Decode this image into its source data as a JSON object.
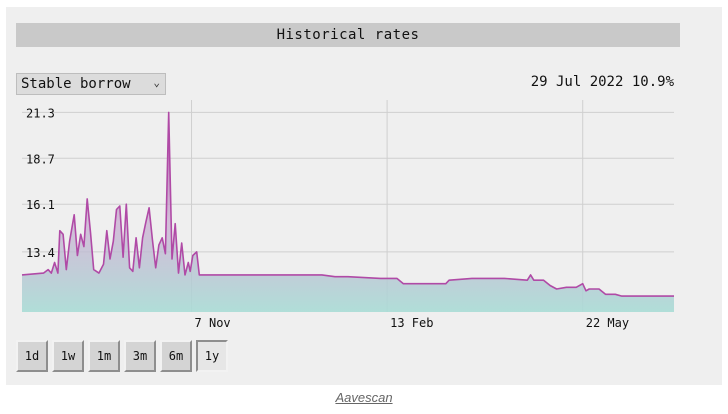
{
  "title": "Historical rates",
  "rate_type": {
    "selected": "Stable borrow"
  },
  "readout": "29 Jul 2022 10.9%",
  "time_ranges": [
    {
      "label": "1d"
    },
    {
      "label": "1w"
    },
    {
      "label": "1m"
    },
    {
      "label": "3m"
    },
    {
      "label": "6m"
    },
    {
      "label": "1y",
      "active": true
    }
  ],
  "caption": "Aavescan",
  "chart_data": {
    "type": "area",
    "y_ticks": [
      "21.3",
      "18.7",
      "16.1",
      "13.4"
    ],
    "y_tick_values": [
      21.3,
      18.7,
      16.1,
      13.4
    ],
    "x_ticks": [
      "7 Nov",
      "13 Feb",
      "22 May"
    ],
    "x_tick_positions": [
      0.26,
      0.56,
      0.86
    ],
    "ylim": [
      10.0,
      22.0
    ],
    "line_color": "#b04aa6",
    "fill_top_color": "#b24aa4",
    "fill_bottom_color": "#a9dcd6",
    "series": [
      {
        "points": [
          [
            0.0,
            12.1
          ],
          [
            0.033,
            12.2
          ],
          [
            0.04,
            12.4
          ],
          [
            0.045,
            12.2
          ],
          [
            0.05,
            12.8
          ],
          [
            0.055,
            12.2
          ],
          [
            0.058,
            14.6
          ],
          [
            0.063,
            14.4
          ],
          [
            0.068,
            12.4
          ],
          [
            0.073,
            14.0
          ],
          [
            0.08,
            15.5
          ],
          [
            0.085,
            13.2
          ],
          [
            0.09,
            14.4
          ],
          [
            0.095,
            13.7
          ],
          [
            0.1,
            16.4
          ],
          [
            0.105,
            14.5
          ],
          [
            0.11,
            12.4
          ],
          [
            0.118,
            12.2
          ],
          [
            0.125,
            12.7
          ],
          [
            0.13,
            14.6
          ],
          [
            0.135,
            13.0
          ],
          [
            0.14,
            14.0
          ],
          [
            0.145,
            15.8
          ],
          [
            0.15,
            16.0
          ],
          [
            0.155,
            13.1
          ],
          [
            0.16,
            16.1
          ],
          [
            0.165,
            12.5
          ],
          [
            0.17,
            12.3
          ],
          [
            0.175,
            14.2
          ],
          [
            0.18,
            12.5
          ],
          [
            0.185,
            14.2
          ],
          [
            0.19,
            15.1
          ],
          [
            0.195,
            15.9
          ],
          [
            0.2,
            14.1
          ],
          [
            0.205,
            12.5
          ],
          [
            0.21,
            13.8
          ],
          [
            0.215,
            14.2
          ],
          [
            0.22,
            13.3
          ],
          [
            0.225,
            21.3
          ],
          [
            0.23,
            13.0
          ],
          [
            0.235,
            15.0
          ],
          [
            0.24,
            12.2
          ],
          [
            0.245,
            13.9
          ],
          [
            0.25,
            12.1
          ],
          [
            0.255,
            12.8
          ],
          [
            0.258,
            12.3
          ],
          [
            0.262,
            13.2
          ],
          [
            0.268,
            13.4
          ],
          [
            0.272,
            12.1
          ],
          [
            0.3,
            12.1
          ],
          [
            0.36,
            12.1
          ],
          [
            0.4,
            12.1
          ],
          [
            0.43,
            12.1
          ],
          [
            0.46,
            12.1
          ],
          [
            0.48,
            12.0
          ],
          [
            0.5,
            12.0
          ],
          [
            0.55,
            11.9
          ],
          [
            0.575,
            11.9
          ],
          [
            0.585,
            11.6
          ],
          [
            0.6,
            11.6
          ],
          [
            0.63,
            11.6
          ],
          [
            0.65,
            11.6
          ],
          [
            0.655,
            11.8
          ],
          [
            0.69,
            11.9
          ],
          [
            0.74,
            11.9
          ],
          [
            0.775,
            11.8
          ],
          [
            0.78,
            12.1
          ],
          [
            0.785,
            11.8
          ],
          [
            0.8,
            11.8
          ],
          [
            0.81,
            11.5
          ],
          [
            0.82,
            11.3
          ],
          [
            0.835,
            11.4
          ],
          [
            0.85,
            11.4
          ],
          [
            0.86,
            11.6
          ],
          [
            0.865,
            11.2
          ],
          [
            0.87,
            11.3
          ],
          [
            0.885,
            11.3
          ],
          [
            0.895,
            11.0
          ],
          [
            0.91,
            11.0
          ],
          [
            0.92,
            10.9
          ],
          [
            0.95,
            10.9
          ],
          [
            0.98,
            10.9
          ],
          [
            1.0,
            10.9
          ]
        ]
      }
    ]
  }
}
